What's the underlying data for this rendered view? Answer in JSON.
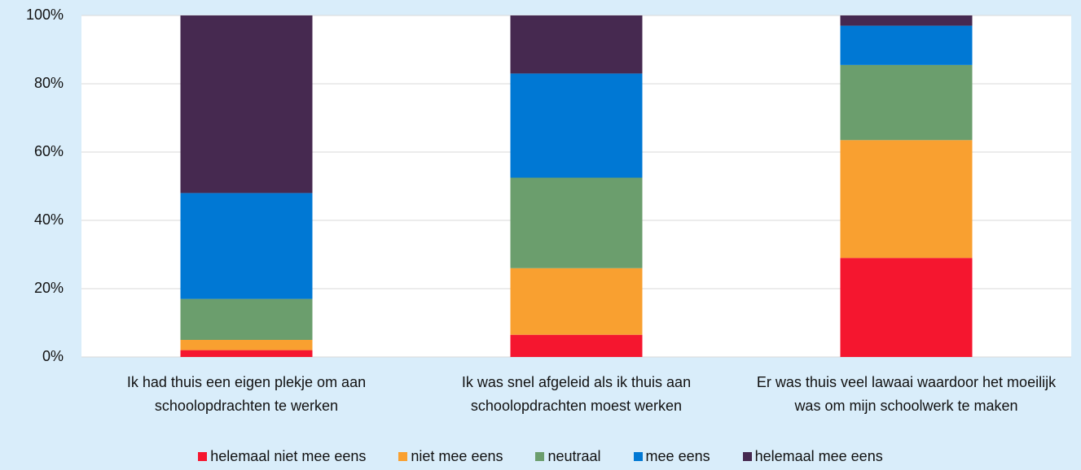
{
  "chart_data": {
    "type": "stacked_bar",
    "categories": [
      "Ik had thuis een eigen plekje om aan schoolopdrachten te werken",
      "Ik was snel afgeleid als ik thuis aan schoolopdrachten moest werken",
      "Er was thuis veel lawaai waardoor het moeilijk was om mijn schoolwerk te maken"
    ],
    "series": [
      {
        "name": "helemaal niet mee eens",
        "color": "#f5162f",
        "values": [
          2,
          6.5,
          29
        ]
      },
      {
        "name": "niet mee eens",
        "color": "#f9a030",
        "values": [
          3,
          19.5,
          34.5
        ]
      },
      {
        "name": "neutraal",
        "color": "#6b9e6d",
        "values": [
          12,
          26.5,
          22
        ]
      },
      {
        "name": "mee eens",
        "color": "#0078d4",
        "values": [
          31,
          30.5,
          11.5
        ]
      },
      {
        "name": "helemaal mee eens",
        "color": "#462950",
        "values": [
          52,
          17,
          3
        ]
      }
    ],
    "ylim": [
      0,
      100
    ],
    "yticks": [
      {
        "value": 0,
        "label": "0%"
      },
      {
        "value": 20,
        "label": "20%"
      },
      {
        "value": 40,
        "label": "40%"
      },
      {
        "value": 60,
        "label": "60%"
      },
      {
        "value": 80,
        "label": "80%"
      },
      {
        "value": 100,
        "label": "100%"
      }
    ],
    "grid": true
  }
}
